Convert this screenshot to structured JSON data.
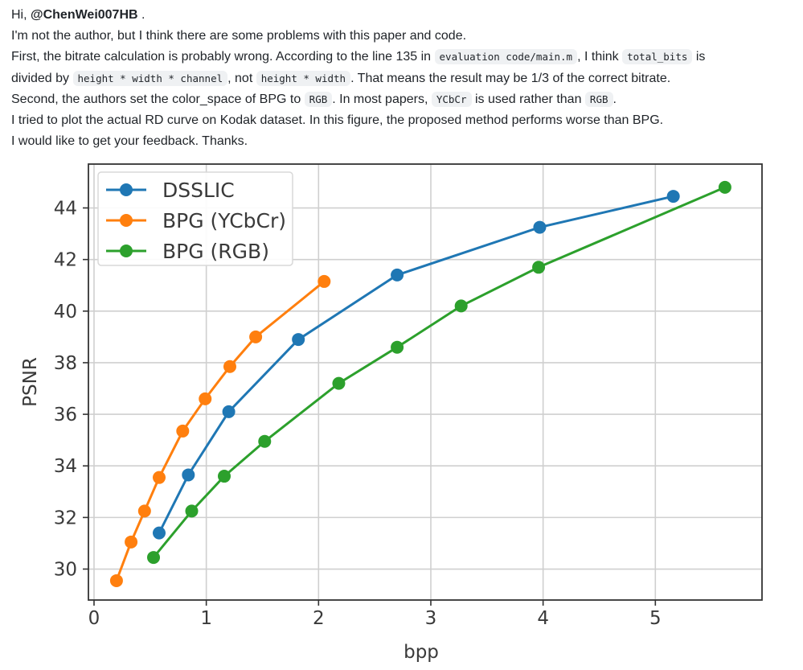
{
  "comment": {
    "greeting_prefix": "Hi, ",
    "mention": "@ChenWei007HB",
    "greeting_suffix": " .",
    "line2": "I'm not the author, but I think there are some problems with this paper and code.",
    "line3_a": "First, the bitrate calculation is probably wrong. According to the line 135 in ",
    "line3_code1": "evaluation code/main.m",
    "line3_b": ", I think ",
    "line3_code2": "total_bits",
    "line3_c": " is",
    "line4_a": "divided by ",
    "line4_code1": "height * width * channel",
    "line4_b": ", not ",
    "line4_code2": "height * width",
    "line4_c": ". That means the result may be 1/3 of the correct bitrate.",
    "line5_a": "Second, the authors set the color_space of BPG to ",
    "line5_code1": "RGB",
    "line5_b": ". In most papers, ",
    "line5_code2": "YCbCr",
    "line5_c": " is used rather than ",
    "line5_code3": "RGB",
    "line5_d": ".",
    "line6": "I tried to plot the actual RD curve on Kodak dataset. In this figure, the proposed method performs worse than BPG.",
    "line7": "I would like to get your feedback. Thanks."
  },
  "chart_data": {
    "type": "line",
    "xlabel": "bpp",
    "ylabel": "PSNR",
    "xlim": [
      -0.05,
      5.95
    ],
    "ylim": [
      28.8,
      45.7
    ],
    "xticks": [
      0,
      1,
      2,
      3,
      4,
      5
    ],
    "yticks": [
      30,
      32,
      34,
      36,
      38,
      40,
      42,
      44
    ],
    "grid": true,
    "legend_position": "top-left",
    "series": [
      {
        "name": "DSSLIC",
        "color": "#1f77b4",
        "x": [
          0.58,
          0.84,
          1.2,
          1.82,
          2.7,
          3.97,
          5.16
        ],
        "y": [
          31.4,
          33.65,
          36.1,
          38.9,
          41.4,
          43.25,
          44.45
        ]
      },
      {
        "name": "BPG (YCbCr)",
        "color": "#ff7f0e",
        "x": [
          0.2,
          0.33,
          0.45,
          0.58,
          0.79,
          0.99,
          1.21,
          1.44,
          2.05
        ],
        "y": [
          29.55,
          31.05,
          32.25,
          33.55,
          35.35,
          36.6,
          37.85,
          39.0,
          41.15
        ]
      },
      {
        "name": "BPG (RGB)",
        "color": "#2ca02c",
        "x": [
          0.53,
          0.87,
          1.16,
          1.52,
          2.18,
          2.7,
          3.27,
          3.96,
          5.62
        ],
        "y": [
          30.45,
          32.25,
          33.6,
          34.95,
          37.2,
          38.6,
          40.2,
          41.7,
          44.8
        ]
      }
    ]
  }
}
